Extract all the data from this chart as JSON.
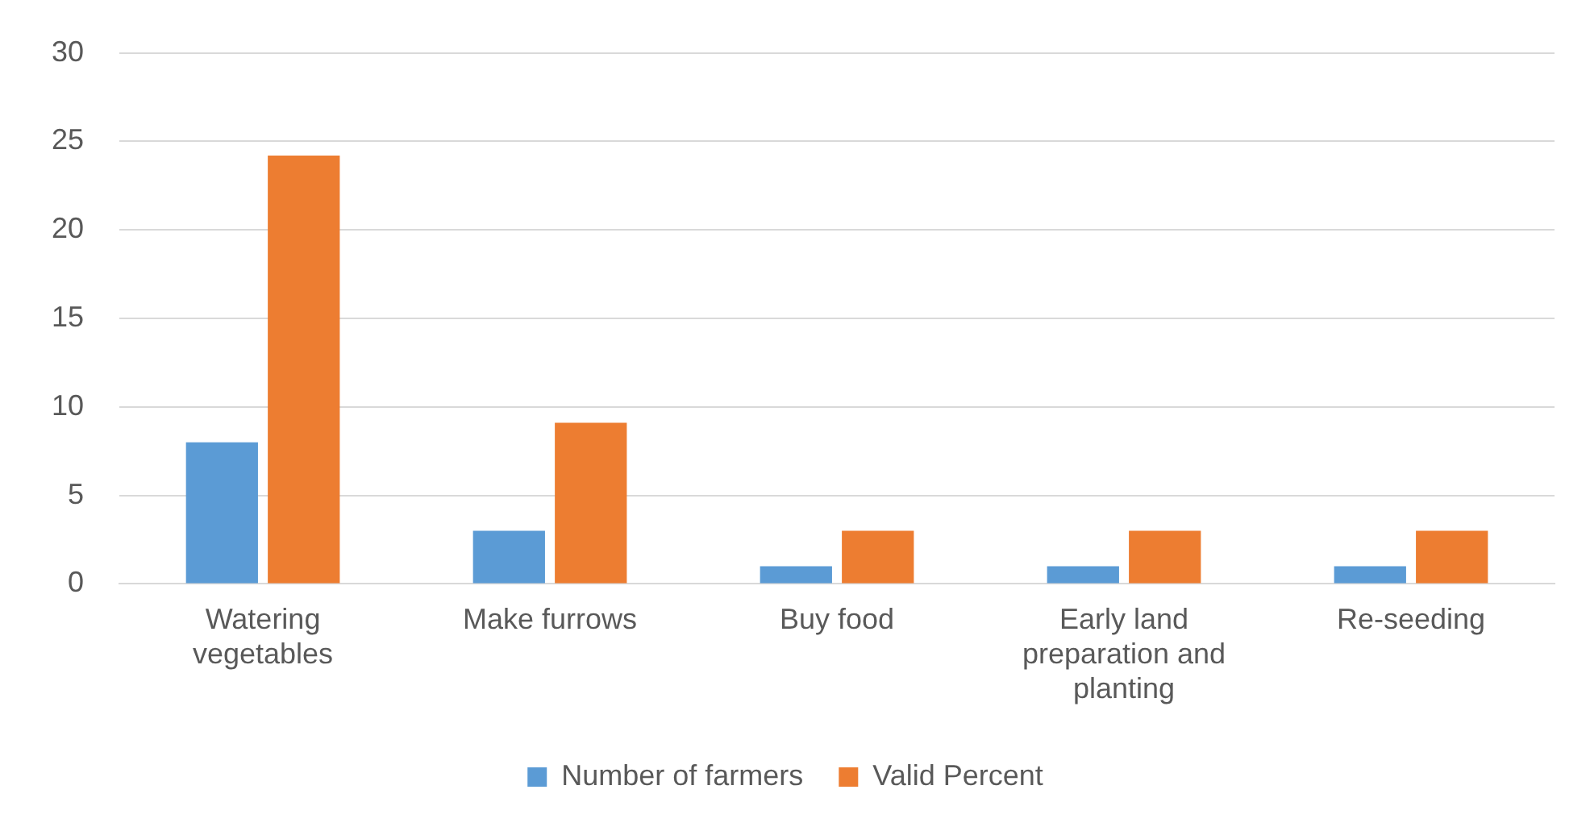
{
  "chart_data": {
    "type": "bar",
    "categories": [
      "Watering vegetables",
      "Make furrows",
      "Buy food",
      "Early land preparation and planting",
      "Re-seeding"
    ],
    "series": [
      {
        "name": "Number of farmers",
        "color": "#5b9bd5",
        "values": [
          8,
          3,
          1,
          1,
          1
        ]
      },
      {
        "name": "Valid Percent",
        "color": "#ed7d31",
        "values": [
          24.2,
          9.1,
          3.0,
          3.0,
          3.0
        ]
      }
    ],
    "ylim": [
      0,
      30
    ],
    "yticks": [
      0,
      5,
      10,
      15,
      20,
      25,
      30
    ],
    "grid": "y",
    "legend": "bottom"
  }
}
